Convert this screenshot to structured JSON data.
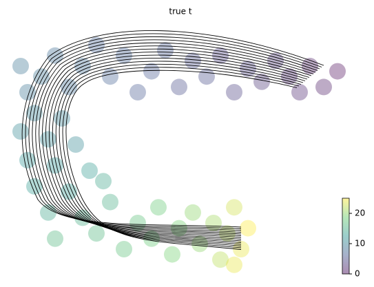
{
  "chart_data": {
    "type": "scatter",
    "title": "true t",
    "x": [
      96,
      92,
      88,
      85,
      82,
      78,
      74,
      70,
      66,
      62,
      58,
      54,
      50,
      46,
      42,
      38,
      34,
      30,
      26,
      22,
      18,
      14,
      10,
      6,
      4,
      8,
      16,
      4,
      12,
      20,
      6,
      14,
      24,
      8,
      18,
      28,
      12,
      22,
      30,
      14,
      26,
      34,
      38,
      42,
      44,
      48,
      50,
      54,
      56,
      60,
      62,
      64,
      66,
      68,
      70,
      66
    ],
    "y": [
      78,
      72,
      80,
      70,
      76,
      82,
      74,
      79,
      70,
      84,
      76,
      82,
      72,
      86,
      78,
      70,
      84,
      76,
      88,
      80,
      72,
      84,
      76,
      70,
      80,
      62,
      60,
      55,
      52,
      50,
      44,
      42,
      40,
      34,
      32,
      36,
      24,
      22,
      28,
      14,
      16,
      10,
      20,
      14,
      26,
      8,
      18,
      24,
      12,
      20,
      6,
      16,
      26,
      10,
      18,
      4
    ],
    "values": [
      0,
      1,
      1,
      2,
      2,
      3,
      3,
      4,
      4,
      4,
      5,
      5,
      5,
      6,
      6,
      6,
      7,
      7,
      7,
      8,
      8,
      8,
      9,
      9,
      9,
      10,
      10,
      11,
      11,
      11,
      12,
      12,
      13,
      13,
      13,
      14,
      14,
      15,
      15,
      16,
      16,
      17,
      17,
      18,
      18,
      19,
      19,
      20,
      20,
      21,
      22,
      22,
      23,
      24,
      25,
      24
    ],
    "xlim": [
      0,
      100
    ],
    "ylim": [
      0,
      100
    ],
    "colormap": "viridis",
    "clim": [
      0,
      25
    ],
    "cticks": [
      0,
      10,
      20
    ]
  }
}
